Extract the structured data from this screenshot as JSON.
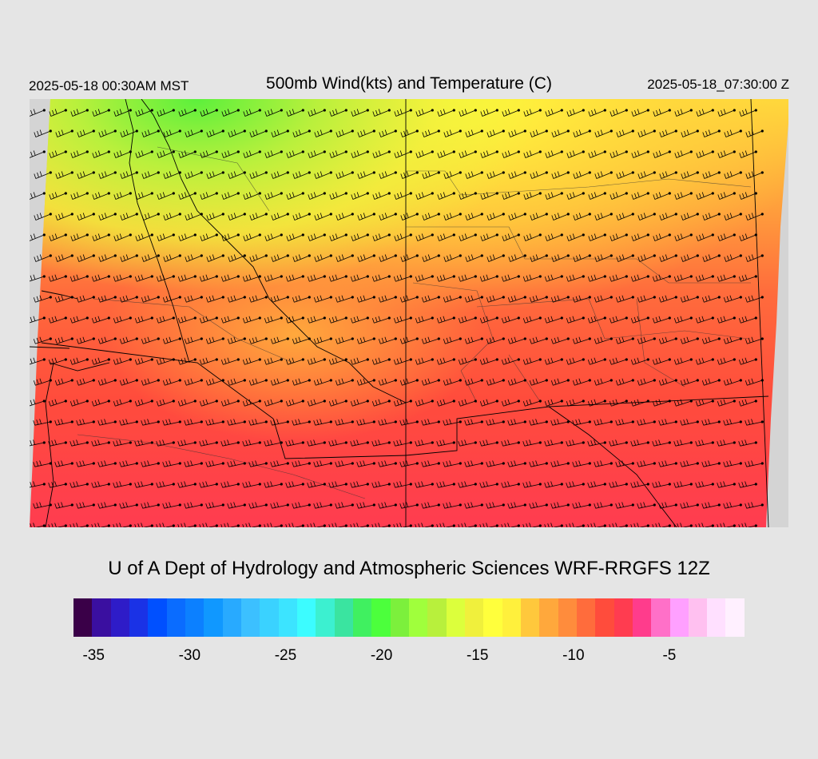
{
  "header": {
    "local_time": "2025-05-18 00:30AM MST",
    "title": "500mb Wind(kts) and Temperature (C)",
    "utc_time": "2025-05-18_07:30:00 Z"
  },
  "credit": "U of A Dept of Hydrology and Atmospheric Sciences WRF-RRGFS 12Z",
  "colorbar": {
    "colors": [
      "#3a0048",
      "#3a0fa0",
      "#2e1cc8",
      "#1a32e6",
      "#0050ff",
      "#0a6cff",
      "#0c80ff",
      "#1098ff",
      "#28aaff",
      "#3cc0ff",
      "#3ad2ff",
      "#3ce4ff",
      "#3cfcff",
      "#3cf0d0",
      "#3ae4a0",
      "#40f060",
      "#4cff3c",
      "#7cf03c",
      "#a0ff3c",
      "#b8f03c",
      "#dcff3c",
      "#f0f03c",
      "#ffff3c",
      "#fff03c",
      "#ffc83c",
      "#ffa83c",
      "#ff8c3c",
      "#ff6c3c",
      "#ff4c3c",
      "#ff3c50",
      "#ff3c8c",
      "#ff70c8",
      "#ffa0ff",
      "#ffc0f0",
      "#ffe0ff",
      "#fff0ff"
    ],
    "ticks": [
      {
        "label": "-35",
        "pos": 0.03
      },
      {
        "label": "-30",
        "pos": 0.173
      },
      {
        "label": "-25",
        "pos": 0.316
      },
      {
        "label": "-20",
        "pos": 0.459
      },
      {
        "label": "-15",
        "pos": 0.602
      },
      {
        "label": "-10",
        "pos": 0.745
      },
      {
        "label": "-5",
        "pos": 0.888
      }
    ]
  }
}
